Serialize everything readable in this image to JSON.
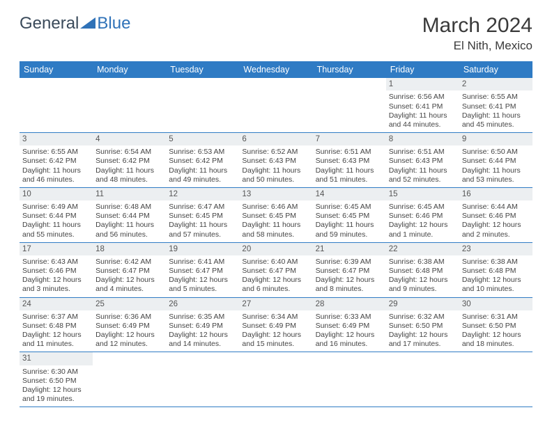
{
  "brand": {
    "part1": "General",
    "part2": "Blue"
  },
  "title": "March 2024",
  "location": "El Nith, Mexico",
  "colors": {
    "header_bg": "#2f7bc4",
    "header_text": "#ffffff",
    "daynum_bg": "#eceff1",
    "row_border": "#2f7bc4",
    "brand_blue": "#2f72b8",
    "body_text": "#444444"
  },
  "fonts": {
    "title_size_pt": 22,
    "location_size_pt": 13,
    "dayname_size_pt": 9,
    "cell_size_pt": 8
  },
  "daynames": [
    "Sunday",
    "Monday",
    "Tuesday",
    "Wednesday",
    "Thursday",
    "Friday",
    "Saturday"
  ],
  "weeks": [
    [
      null,
      null,
      null,
      null,
      null,
      {
        "day": "1",
        "sunrise": "Sunrise: 6:56 AM",
        "sunset": "Sunset: 6:41 PM",
        "daylight1": "Daylight: 11 hours",
        "daylight2": "and 44 minutes."
      },
      {
        "day": "2",
        "sunrise": "Sunrise: 6:55 AM",
        "sunset": "Sunset: 6:41 PM",
        "daylight1": "Daylight: 11 hours",
        "daylight2": "and 45 minutes."
      }
    ],
    [
      {
        "day": "3",
        "sunrise": "Sunrise: 6:55 AM",
        "sunset": "Sunset: 6:42 PM",
        "daylight1": "Daylight: 11 hours",
        "daylight2": "and 46 minutes."
      },
      {
        "day": "4",
        "sunrise": "Sunrise: 6:54 AM",
        "sunset": "Sunset: 6:42 PM",
        "daylight1": "Daylight: 11 hours",
        "daylight2": "and 48 minutes."
      },
      {
        "day": "5",
        "sunrise": "Sunrise: 6:53 AM",
        "sunset": "Sunset: 6:42 PM",
        "daylight1": "Daylight: 11 hours",
        "daylight2": "and 49 minutes."
      },
      {
        "day": "6",
        "sunrise": "Sunrise: 6:52 AM",
        "sunset": "Sunset: 6:43 PM",
        "daylight1": "Daylight: 11 hours",
        "daylight2": "and 50 minutes."
      },
      {
        "day": "7",
        "sunrise": "Sunrise: 6:51 AM",
        "sunset": "Sunset: 6:43 PM",
        "daylight1": "Daylight: 11 hours",
        "daylight2": "and 51 minutes."
      },
      {
        "day": "8",
        "sunrise": "Sunrise: 6:51 AM",
        "sunset": "Sunset: 6:43 PM",
        "daylight1": "Daylight: 11 hours",
        "daylight2": "and 52 minutes."
      },
      {
        "day": "9",
        "sunrise": "Sunrise: 6:50 AM",
        "sunset": "Sunset: 6:44 PM",
        "daylight1": "Daylight: 11 hours",
        "daylight2": "and 53 minutes."
      }
    ],
    [
      {
        "day": "10",
        "sunrise": "Sunrise: 6:49 AM",
        "sunset": "Sunset: 6:44 PM",
        "daylight1": "Daylight: 11 hours",
        "daylight2": "and 55 minutes."
      },
      {
        "day": "11",
        "sunrise": "Sunrise: 6:48 AM",
        "sunset": "Sunset: 6:44 PM",
        "daylight1": "Daylight: 11 hours",
        "daylight2": "and 56 minutes."
      },
      {
        "day": "12",
        "sunrise": "Sunrise: 6:47 AM",
        "sunset": "Sunset: 6:45 PM",
        "daylight1": "Daylight: 11 hours",
        "daylight2": "and 57 minutes."
      },
      {
        "day": "13",
        "sunrise": "Sunrise: 6:46 AM",
        "sunset": "Sunset: 6:45 PM",
        "daylight1": "Daylight: 11 hours",
        "daylight2": "and 58 minutes."
      },
      {
        "day": "14",
        "sunrise": "Sunrise: 6:45 AM",
        "sunset": "Sunset: 6:45 PM",
        "daylight1": "Daylight: 11 hours",
        "daylight2": "and 59 minutes."
      },
      {
        "day": "15",
        "sunrise": "Sunrise: 6:45 AM",
        "sunset": "Sunset: 6:46 PM",
        "daylight1": "Daylight: 12 hours",
        "daylight2": "and 1 minute."
      },
      {
        "day": "16",
        "sunrise": "Sunrise: 6:44 AM",
        "sunset": "Sunset: 6:46 PM",
        "daylight1": "Daylight: 12 hours",
        "daylight2": "and 2 minutes."
      }
    ],
    [
      {
        "day": "17",
        "sunrise": "Sunrise: 6:43 AM",
        "sunset": "Sunset: 6:46 PM",
        "daylight1": "Daylight: 12 hours",
        "daylight2": "and 3 minutes."
      },
      {
        "day": "18",
        "sunrise": "Sunrise: 6:42 AM",
        "sunset": "Sunset: 6:47 PM",
        "daylight1": "Daylight: 12 hours",
        "daylight2": "and 4 minutes."
      },
      {
        "day": "19",
        "sunrise": "Sunrise: 6:41 AM",
        "sunset": "Sunset: 6:47 PM",
        "daylight1": "Daylight: 12 hours",
        "daylight2": "and 5 minutes."
      },
      {
        "day": "20",
        "sunrise": "Sunrise: 6:40 AM",
        "sunset": "Sunset: 6:47 PM",
        "daylight1": "Daylight: 12 hours",
        "daylight2": "and 6 minutes."
      },
      {
        "day": "21",
        "sunrise": "Sunrise: 6:39 AM",
        "sunset": "Sunset: 6:47 PM",
        "daylight1": "Daylight: 12 hours",
        "daylight2": "and 8 minutes."
      },
      {
        "day": "22",
        "sunrise": "Sunrise: 6:38 AM",
        "sunset": "Sunset: 6:48 PM",
        "daylight1": "Daylight: 12 hours",
        "daylight2": "and 9 minutes."
      },
      {
        "day": "23",
        "sunrise": "Sunrise: 6:38 AM",
        "sunset": "Sunset: 6:48 PM",
        "daylight1": "Daylight: 12 hours",
        "daylight2": "and 10 minutes."
      }
    ],
    [
      {
        "day": "24",
        "sunrise": "Sunrise: 6:37 AM",
        "sunset": "Sunset: 6:48 PM",
        "daylight1": "Daylight: 12 hours",
        "daylight2": "and 11 minutes."
      },
      {
        "day": "25",
        "sunrise": "Sunrise: 6:36 AM",
        "sunset": "Sunset: 6:49 PM",
        "daylight1": "Daylight: 12 hours",
        "daylight2": "and 12 minutes."
      },
      {
        "day": "26",
        "sunrise": "Sunrise: 6:35 AM",
        "sunset": "Sunset: 6:49 PM",
        "daylight1": "Daylight: 12 hours",
        "daylight2": "and 14 minutes."
      },
      {
        "day": "27",
        "sunrise": "Sunrise: 6:34 AM",
        "sunset": "Sunset: 6:49 PM",
        "daylight1": "Daylight: 12 hours",
        "daylight2": "and 15 minutes."
      },
      {
        "day": "28",
        "sunrise": "Sunrise: 6:33 AM",
        "sunset": "Sunset: 6:49 PM",
        "daylight1": "Daylight: 12 hours",
        "daylight2": "and 16 minutes."
      },
      {
        "day": "29",
        "sunrise": "Sunrise: 6:32 AM",
        "sunset": "Sunset: 6:50 PM",
        "daylight1": "Daylight: 12 hours",
        "daylight2": "and 17 minutes."
      },
      {
        "day": "30",
        "sunrise": "Sunrise: 6:31 AM",
        "sunset": "Sunset: 6:50 PM",
        "daylight1": "Daylight: 12 hours",
        "daylight2": "and 18 minutes."
      }
    ],
    [
      {
        "day": "31",
        "sunrise": "Sunrise: 6:30 AM",
        "sunset": "Sunset: 6:50 PM",
        "daylight1": "Daylight: 12 hours",
        "daylight2": "and 19 minutes."
      },
      null,
      null,
      null,
      null,
      null,
      null
    ]
  ]
}
